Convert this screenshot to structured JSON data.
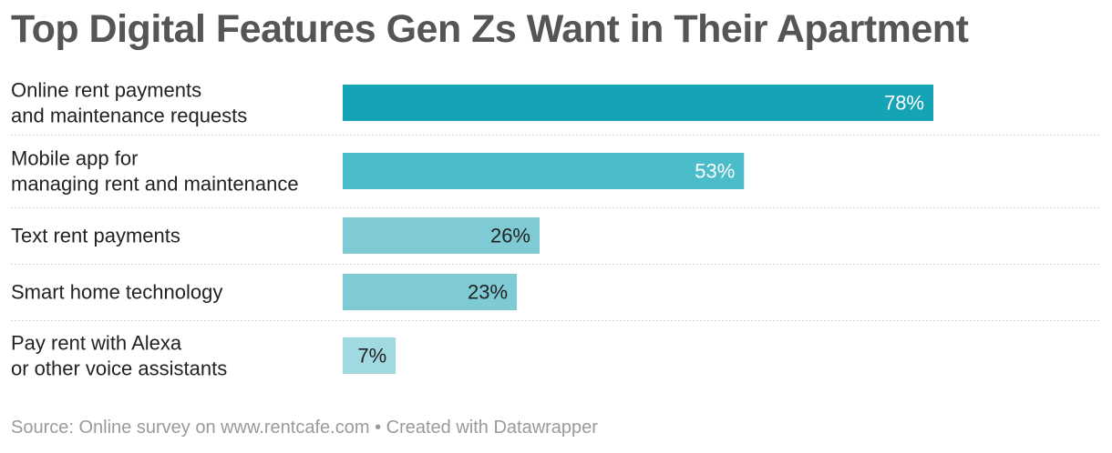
{
  "title": "Top Digital Features Gen Zs Want in Their Apartment",
  "source": "Source: Online survey on www.rentcafe.com • Created with Datawrapper",
  "chart_data": {
    "type": "bar",
    "orientation": "horizontal",
    "title": "Top Digital Features Gen Zs Want in Their Apartment",
    "categories": [
      [
        "Online rent payments",
        "and maintenance requests"
      ],
      [
        "Mobile app for",
        "managing rent and maintenance"
      ],
      [
        "Text rent payments"
      ],
      [
        "Smart home technology"
      ],
      [
        "Pay rent with Alexa",
        "or other voice assistants"
      ]
    ],
    "values": [
      78,
      53,
      26,
      23,
      7
    ],
    "value_labels": [
      "78%",
      "53%",
      "26%",
      "23%",
      "7%"
    ],
    "unit": "%",
    "xlim": [
      0,
      100
    ],
    "bar_colors": [
      "#15a4b5",
      "#4bbcca",
      "#7fcbd5",
      "#7fcbd5",
      "#a0d9e0"
    ],
    "label_colors": [
      "#ffffff",
      "#ffffff",
      "#222222",
      "#222222",
      "#222222"
    ],
    "gridlines": false,
    "separators": "dotted"
  }
}
